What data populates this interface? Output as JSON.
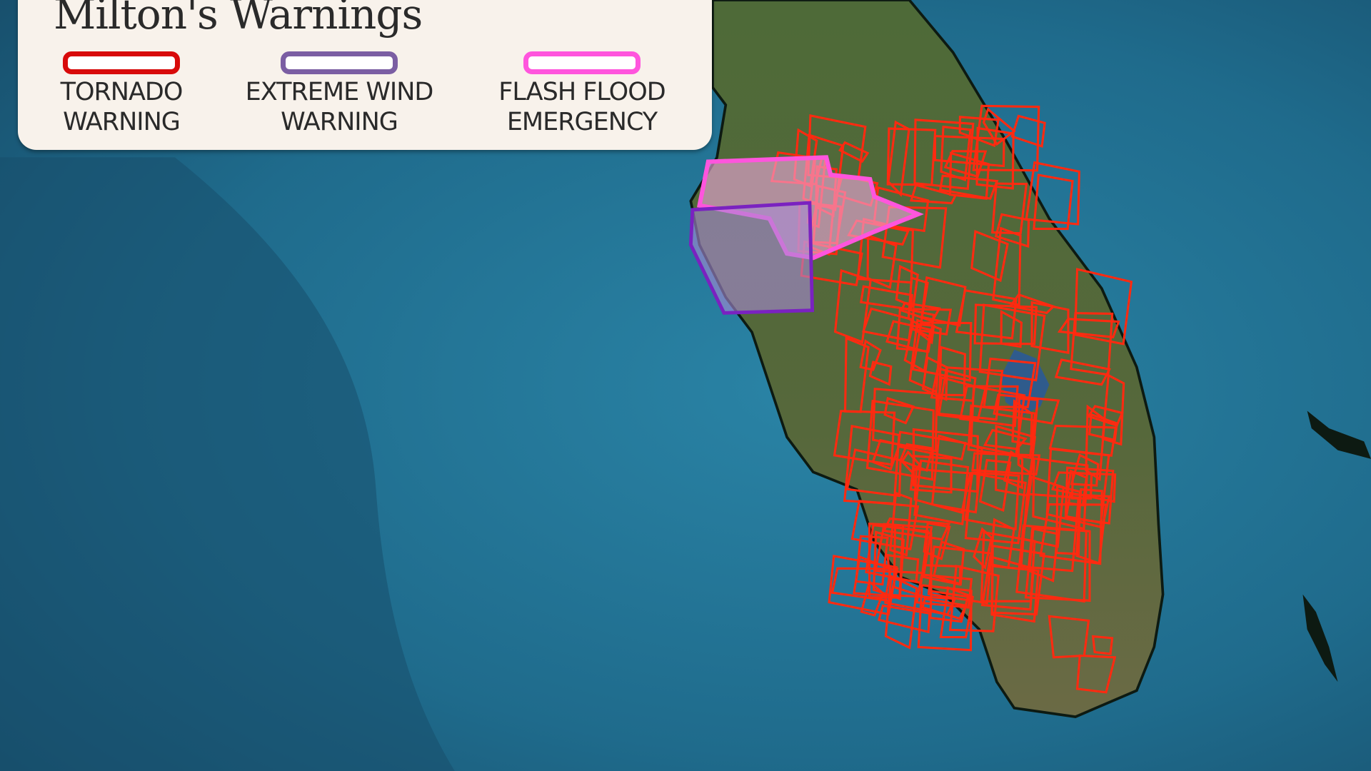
{
  "title": "Milton's Warnings",
  "legend": [
    {
      "line1": "TORNADO",
      "line2": "WARNING",
      "color": "#d80a0a"
    },
    {
      "line1": "EXTREME WIND",
      "line2": "WARNING",
      "color": "#7b5ea3"
    },
    {
      "line1": "FLASH FLOOD",
      "line2": "EMERGENCY",
      "color": "#ff55dd"
    }
  ],
  "colors": {
    "ocean": "#1e6a8a",
    "land": "#4f6a36",
    "lake": "#2f5b8c",
    "tornado_outline": "#ff2a10"
  }
}
